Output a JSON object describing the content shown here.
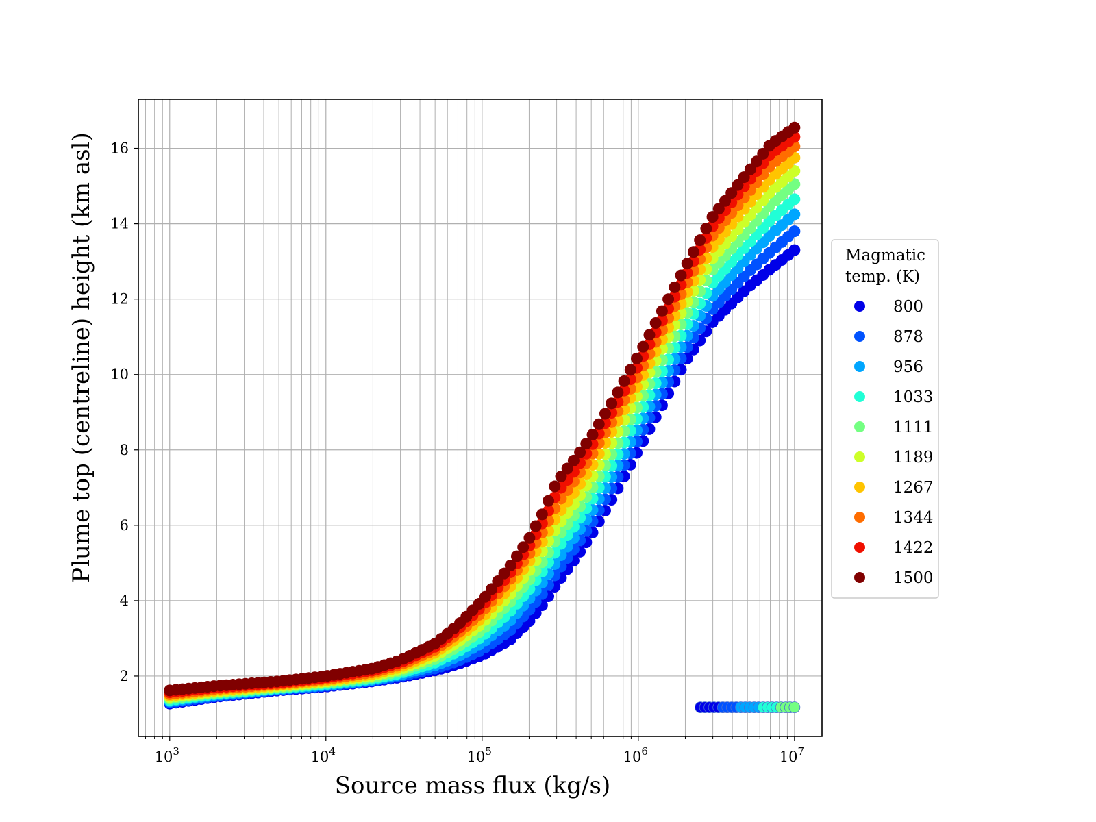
{
  "chart_data": {
    "type": "scatter",
    "title": "",
    "xlabel": "Source mass flux (kg/s)",
    "ylabel": "Plume top (centreline) height (km asl)",
    "x_scale": "log",
    "xlim": [
      630,
      15000000
    ],
    "ylim": [
      0.4,
      17.3
    ],
    "x_ticks": [
      {
        "value": 1000,
        "base": "10",
        "exp": "3"
      },
      {
        "value": 10000,
        "base": "10",
        "exp": "4"
      },
      {
        "value": 100000,
        "base": "10",
        "exp": "5"
      },
      {
        "value": 1000000,
        "base": "10",
        "exp": "6"
      },
      {
        "value": 10000000,
        "base": "10",
        "exp": "7"
      }
    ],
    "y_ticks": [
      2,
      4,
      6,
      8,
      10,
      12,
      14,
      16
    ],
    "grid": true,
    "legend": {
      "title_line1": "Magmatic",
      "title_line2": "temp. (K)",
      "placement": "outside-right"
    },
    "x_samples": [
      1000,
      2000,
      5000,
      10000,
      20000,
      30000,
      50000,
      70000,
      100000,
      150000,
      200000,
      250000,
      300000,
      400000,
      500000,
      700000,
      1000000,
      2000000,
      3000000,
      5000000,
      7000000,
      10000000
    ],
    "series": [
      {
        "name": "800",
        "color": "#0000e8",
        "y": [
          1.27,
          1.45,
          1.62,
          1.72,
          1.86,
          1.97,
          2.15,
          2.32,
          2.55,
          2.95,
          3.45,
          3.95,
          4.45,
          5.15,
          5.75,
          6.8,
          8.0,
          10.35,
          11.4,
          12.3,
          12.8,
          13.3
        ]
      },
      {
        "name": "878",
        "color": "#0052ff",
        "y": [
          1.3,
          1.47,
          1.64,
          1.74,
          1.88,
          2.0,
          2.2,
          2.4,
          2.7,
          3.2,
          3.75,
          4.25,
          4.75,
          5.45,
          6.05,
          7.1,
          8.3,
          10.65,
          11.75,
          12.7,
          13.25,
          13.8
        ]
      },
      {
        "name": "956",
        "color": "#00a6ff",
        "y": [
          1.33,
          1.5,
          1.66,
          1.76,
          1.9,
          2.04,
          2.28,
          2.52,
          2.88,
          3.45,
          4.05,
          4.55,
          5.05,
          5.75,
          6.35,
          7.4,
          8.6,
          10.95,
          12.1,
          13.1,
          13.7,
          14.25
        ]
      },
      {
        "name": "1033",
        "color": "#21ffd6",
        "y": [
          1.36,
          1.53,
          1.68,
          1.79,
          1.93,
          2.08,
          2.36,
          2.65,
          3.05,
          3.7,
          4.3,
          4.85,
          5.35,
          6.05,
          6.65,
          7.7,
          8.9,
          11.25,
          12.45,
          13.45,
          14.1,
          14.65
        ]
      },
      {
        "name": "1111",
        "color": "#74ff82",
        "y": [
          1.4,
          1.56,
          1.7,
          1.82,
          1.97,
          2.13,
          2.45,
          2.78,
          3.22,
          3.95,
          4.55,
          5.1,
          5.65,
          6.35,
          6.95,
          8.0,
          9.2,
          11.55,
          12.8,
          13.8,
          14.5,
          15.05
        ]
      },
      {
        "name": "1189",
        "color": "#cdff29",
        "y": [
          1.44,
          1.59,
          1.73,
          1.85,
          2.01,
          2.18,
          2.54,
          2.9,
          3.4,
          4.15,
          4.8,
          5.4,
          5.95,
          6.65,
          7.25,
          8.3,
          9.5,
          11.85,
          13.1,
          14.15,
          14.85,
          15.4
        ]
      },
      {
        "name": "1267",
        "color": "#ffc400",
        "y": [
          1.48,
          1.62,
          1.76,
          1.88,
          2.05,
          2.24,
          2.62,
          3.02,
          3.55,
          4.35,
          5.05,
          5.65,
          6.25,
          6.95,
          7.55,
          8.6,
          9.75,
          12.1,
          13.4,
          14.5,
          15.2,
          15.75
        ]
      },
      {
        "name": "1344",
        "color": "#ff6d00",
        "y": [
          1.52,
          1.66,
          1.79,
          1.92,
          2.1,
          2.3,
          2.7,
          3.13,
          3.7,
          4.55,
          5.25,
          5.9,
          6.55,
          7.25,
          7.85,
          8.85,
          10.0,
          12.35,
          13.7,
          14.8,
          15.55,
          16.05
        ]
      },
      {
        "name": "1422",
        "color": "#f00f00",
        "y": [
          1.57,
          1.7,
          1.82,
          1.96,
          2.15,
          2.36,
          2.78,
          3.24,
          3.85,
          4.72,
          5.45,
          6.15,
          6.85,
          7.5,
          8.1,
          9.1,
          10.25,
          12.6,
          13.95,
          15.1,
          15.85,
          16.3
        ]
      },
      {
        "name": "1500",
        "color": "#800000",
        "y": [
          1.62,
          1.74,
          1.86,
          2.0,
          2.2,
          2.42,
          2.86,
          3.35,
          4.0,
          4.9,
          5.65,
          6.4,
          7.15,
          7.8,
          8.35,
          9.35,
          10.5,
          12.85,
          14.2,
          15.35,
          16.1,
          16.55
        ]
      }
    ],
    "offset_band": {
      "y": 1.17,
      "x_start": 2500000,
      "x_end": 10000000,
      "color_sequence": [
        "#0000e8",
        "#0052ff",
        "#00a6ff",
        "#21ffd6",
        "#74ff82"
      ]
    }
  }
}
